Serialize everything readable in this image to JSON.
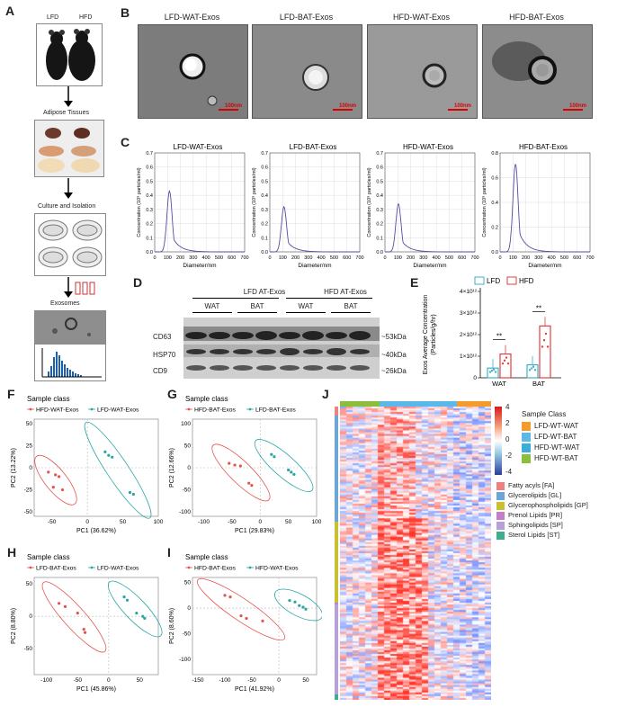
{
  "panels": {
    "A": "A",
    "B": "B",
    "C": "C",
    "D": "D",
    "E": "E",
    "F": "F",
    "G": "G",
    "H": "H",
    "I": "I",
    "J": "J"
  },
  "panelA": {
    "lfd": "LFD",
    "hfd": "HFD",
    "adipose": "Adipose Tissues",
    "culture": "Culture and Isolation",
    "exosomes": "Exosomes"
  },
  "panelB": {
    "titles": [
      "LFD-WAT-Exos",
      "LFD-BAT-Exos",
      "HFD-WAT-Exos",
      "HFD-BAT-Exos"
    ],
    "scale": "100nm"
  },
  "panelC": {
    "ylabel": "Concentration (10⁸ particles/ml)",
    "xlabel": "Diameter/nm",
    "plots": [
      {
        "title": "LFD-WAT-Exos",
        "peak_x": 115,
        "peak_y": 0.43
      },
      {
        "title": "LFD-BAT-Exos",
        "peak_x": 110,
        "peak_y": 0.32
      },
      {
        "title": "HFD-WAT-Exos",
        "peak_x": 105,
        "peak_y": 0.34
      },
      {
        "title": "HFD-BAT-Exos",
        "peak_x": 120,
        "peak_y": 0.71
      }
    ],
    "xticks": [
      "0",
      "100",
      "200",
      "300",
      "400",
      "500",
      "600",
      "700"
    ],
    "yticks_a": [
      "0.0",
      "0.1",
      "0.2",
      "0.3",
      "0.4",
      "0.5",
      "0.6",
      "0.7"
    ],
    "yticks_b": [
      "0.0",
      "0.2",
      "0.4",
      "0.6",
      "0.8"
    ]
  },
  "panelD": {
    "groups": [
      "LFD AT-Exos",
      "HFD AT-Exos"
    ],
    "sub": [
      "WAT",
      "BAT",
      "WAT",
      "BAT"
    ],
    "rows": [
      "CD63",
      "HSP70",
      "CD9"
    ],
    "sizes": [
      "~53kDa",
      "~40kDa",
      "~26kDa"
    ]
  },
  "panelE": {
    "legend": [
      "LFD",
      "HFD"
    ],
    "ylabel_1": "Exos Average Concentration",
    "ylabel_2": "(Particles/g/hr)",
    "yticks": [
      "0",
      "1×10¹²",
      "2×10¹²",
      "3×10¹²",
      "4×10¹²"
    ],
    "categories": [
      "WAT",
      "BAT"
    ],
    "sig": "**"
  },
  "chart_data": [
    {
      "type": "bar",
      "categories": [
        "WAT",
        "BAT"
      ],
      "series": [
        {
          "name": "LFD",
          "values": [
            0.45,
            0.6
          ]
        },
        {
          "name": "HFD",
          "values": [
            1.1,
            2.4
          ]
        }
      ],
      "ylim": [
        0,
        4
      ]
    },
    {
      "type": "scatter",
      "title": "Sample class",
      "xlabel": "PC1 (36.62%)",
      "ylabel": "PC2 (13.22%)",
      "series": [
        {
          "name": "HFD-WAT-Exos",
          "points": [
            [
              -55,
              -5
            ],
            [
              -45,
              -8
            ],
            [
              -40,
              -10
            ],
            [
              -48,
              -22
            ],
            [
              -35,
              -25
            ]
          ]
        },
        {
          "name": "LFD-WAT-Exos",
          "points": [
            [
              25,
              18
            ],
            [
              30,
              14
            ],
            [
              35,
              12
            ],
            [
              60,
              -28
            ],
            [
              65,
              -30
            ]
          ]
        }
      ]
    },
    {
      "type": "scatter",
      "title": "Sample class",
      "xlabel": "PC1 (29.83%)",
      "ylabel": "PC2 (12.66%)",
      "series": [
        {
          "name": "HFD-BAT-Exos",
          "points": [
            [
              -55,
              10
            ],
            [
              -45,
              6
            ],
            [
              -35,
              4
            ],
            [
              -20,
              -35
            ],
            [
              -15,
              -40
            ]
          ]
        },
        {
          "name": "LFD-BAT-Exos",
          "points": [
            [
              20,
              30
            ],
            [
              25,
              25
            ],
            [
              50,
              -5
            ],
            [
              55,
              -10
            ],
            [
              60,
              -15
            ]
          ]
        }
      ]
    },
    {
      "type": "scatter",
      "title": "Sample class",
      "xlabel": "PC1 (45.86%)",
      "ylabel": "PC2 (8.80%)",
      "series": [
        {
          "name": "LFD-BAT-Exos",
          "points": [
            [
              -80,
              20
            ],
            [
              -70,
              15
            ],
            [
              -50,
              5
            ],
            [
              -40,
              -20
            ],
            [
              -38,
              -25
            ]
          ]
        },
        {
          "name": "LFD-WAT-Exos",
          "points": [
            [
              25,
              30
            ],
            [
              30,
              25
            ],
            [
              45,
              5
            ],
            [
              55,
              0
            ],
            [
              58,
              -3
            ]
          ]
        }
      ]
    },
    {
      "type": "scatter",
      "title": "Sample class",
      "xlabel": "PC1 (41.92%)",
      "ylabel": "PC2 (8.60%)",
      "series": [
        {
          "name": "HFD-BAT-Exos",
          "points": [
            [
              -100,
              25
            ],
            [
              -90,
              22
            ],
            [
              -70,
              -15
            ],
            [
              -60,
              -20
            ],
            [
              -30,
              -25
            ]
          ]
        },
        {
          "name": "HFD-WAT-Exos",
          "points": [
            [
              20,
              15
            ],
            [
              30,
              12
            ],
            [
              38,
              5
            ],
            [
              45,
              2
            ],
            [
              50,
              -2
            ]
          ]
        }
      ]
    }
  ],
  "panelJ": {
    "legend_title": "Sample Class",
    "scale": [
      "4",
      "2",
      "0",
      "-2",
      "-4"
    ],
    "sample_classes": [
      {
        "label": "LFD-WT-WAT",
        "color": "#f39c2a"
      },
      {
        "label": "LFD-WT-BAT",
        "color": "#5bb8e8"
      },
      {
        "label": "HFD-WT-WAT",
        "color": "#3aaed8"
      },
      {
        "label": "HFD-WT-BAT",
        "color": "#8cbe3c"
      }
    ],
    "lipid_classes": [
      {
        "label": "Fatty acyls [FA]",
        "color": "#f08080"
      },
      {
        "label": "Glycerolipids [GL]",
        "color": "#6aa6d6"
      },
      {
        "label": "Glycerophospholipids [GP]",
        "color": "#c8c030"
      },
      {
        "label": "Prenol Lipids [PR]",
        "color": "#c57fc8"
      },
      {
        "label": "Sphingolipids [SP]",
        "color": "#b7a0d8"
      },
      {
        "label": "Sterol Lipids [ST]",
        "color": "#3fae8c"
      }
    ]
  }
}
